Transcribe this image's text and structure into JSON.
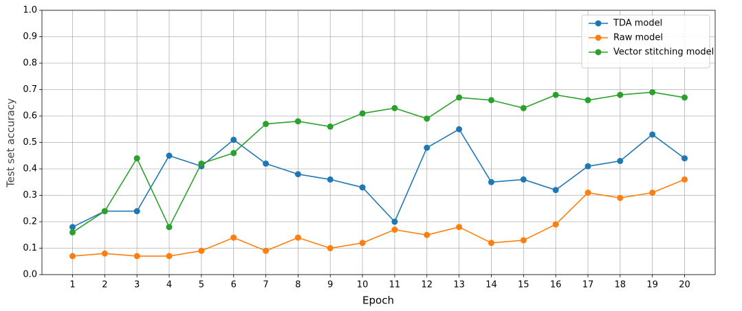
{
  "chart_data": {
    "type": "line",
    "xlabel": "Epoch",
    "ylabel": "Test set accuracy",
    "x": [
      1,
      2,
      3,
      4,
      5,
      6,
      7,
      8,
      9,
      10,
      11,
      12,
      13,
      14,
      15,
      16,
      17,
      18,
      19,
      20
    ],
    "xlim": [
      0.05,
      20.95
    ],
    "xticks": [
      1,
      2,
      3,
      4,
      5,
      6,
      7,
      8,
      9,
      10,
      11,
      12,
      13,
      14,
      15,
      16,
      17,
      18,
      19,
      20
    ],
    "ylim": [
      0,
      1
    ],
    "yticks": [
      {
        "value": 0,
        "label": "0.0"
      },
      0.1,
      0.2,
      0.3,
      0.4,
      0.5,
      0.6,
      0.7,
      0.8,
      0.9,
      {
        "value": 1,
        "label": "1.0"
      }
    ],
    "grid": true,
    "legend": "upper-right",
    "series": [
      {
        "name": "TDA model",
        "color": "#1f77b4",
        "values": [
          0.18,
          0.24,
          0.24,
          0.45,
          0.41,
          0.51,
          0.42,
          0.38,
          0.36,
          0.33,
          0.2,
          0.48,
          0.55,
          0.35,
          0.36,
          0.32,
          0.41,
          0.43,
          0.53,
          0.44
        ]
      },
      {
        "name": "Raw model",
        "color": "#ff7f0e",
        "values": [
          0.07,
          0.08,
          0.07,
          0.07,
          0.09,
          0.14,
          0.09,
          0.14,
          0.1,
          0.12,
          0.17,
          0.15,
          0.18,
          0.12,
          0.13,
          0.19,
          0.31,
          0.29,
          0.31,
          0.36
        ]
      },
      {
        "name": "Vector stitching model",
        "color": "#2ca02c",
        "values": [
          0.16,
          0.24,
          0.44,
          0.18,
          0.42,
          0.46,
          0.57,
          0.58,
          0.56,
          0.61,
          0.63,
          0.59,
          0.67,
          0.66,
          0.63,
          0.68,
          0.66,
          0.68,
          0.69,
          0.67
        ]
      }
    ]
  }
}
